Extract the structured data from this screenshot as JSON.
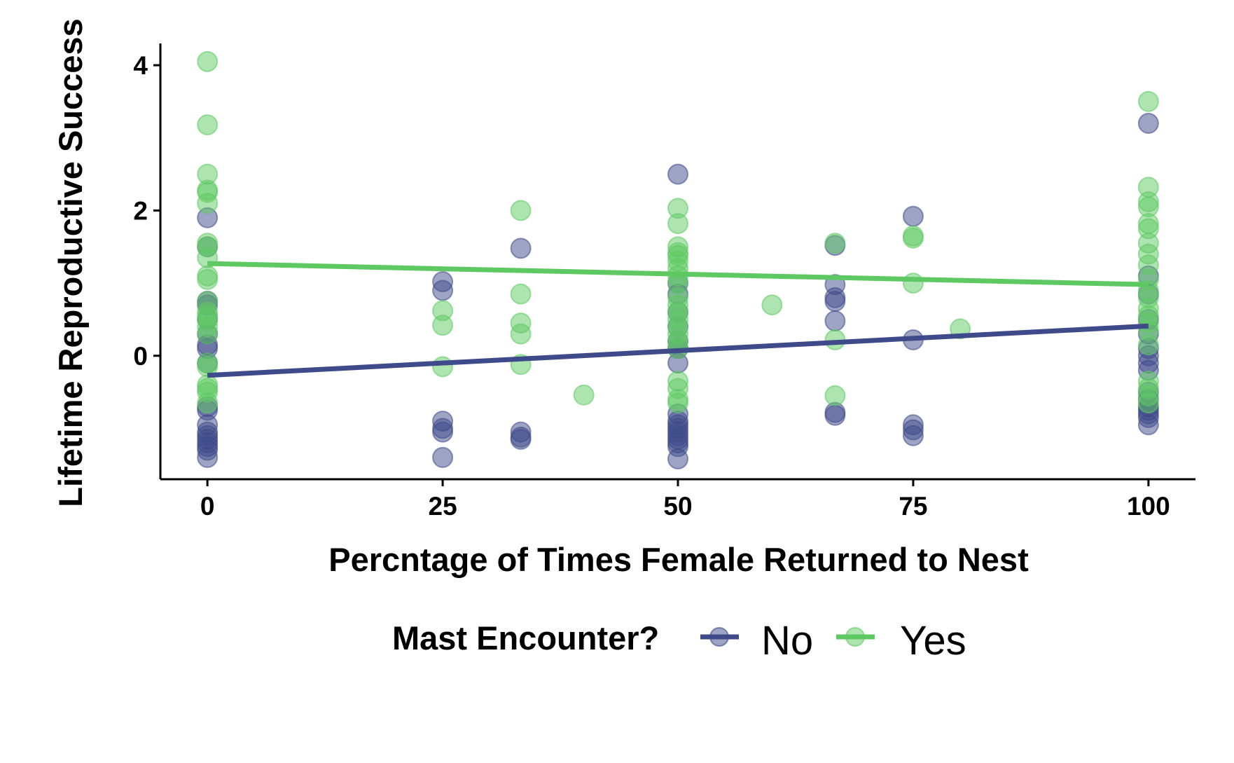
{
  "chart_data": {
    "type": "scatter",
    "title": "",
    "xlabel": "Percntage of Times Female Returned to Nest",
    "ylabel": "Lifetime Reproductive Success",
    "xlim": [
      -5,
      105
    ],
    "ylim": [
      -1.7,
      4.3
    ],
    "x_ticks": [
      0,
      25,
      50,
      75,
      100
    ],
    "y_ticks": [
      0,
      2,
      4
    ],
    "grid": false,
    "legend": {
      "title": "Mast Encounter?",
      "placement": "bottom",
      "entries": [
        "No",
        "Yes"
      ]
    },
    "series": [
      {
        "name": "No",
        "color": "#3e4a89",
        "points": [
          [
            0,
            1.9
          ],
          [
            0,
            1.5
          ],
          [
            0,
            0.75
          ],
          [
            0,
            0.7
          ],
          [
            0,
            0.5
          ],
          [
            0,
            0.3
          ],
          [
            0,
            0.15
          ],
          [
            0,
            0.1
          ],
          [
            0,
            -0.1
          ],
          [
            0,
            -0.7
          ],
          [
            0,
            -0.75
          ],
          [
            0,
            -0.95
          ],
          [
            0,
            -1.05
          ],
          [
            0,
            -1.1
          ],
          [
            0,
            -1.15
          ],
          [
            0,
            -1.2
          ],
          [
            0,
            -1.25
          ],
          [
            0,
            -1.3
          ],
          [
            0,
            -1.4
          ],
          [
            25,
            1.02
          ],
          [
            25,
            0.9
          ],
          [
            25,
            -0.9
          ],
          [
            25,
            -1.0
          ],
          [
            25,
            -1.05
          ],
          [
            25,
            -1.4
          ],
          [
            33.3,
            1.48
          ],
          [
            33.3,
            -1.05
          ],
          [
            33.3,
            -1.12
          ],
          [
            33.3,
            -1.15
          ],
          [
            50,
            2.5
          ],
          [
            50,
            1.0
          ],
          [
            50,
            0.85
          ],
          [
            50,
            0.6
          ],
          [
            50,
            0.4
          ],
          [
            50,
            0.2
          ],
          [
            50,
            0.1
          ],
          [
            50,
            -0.1
          ],
          [
            50,
            -0.8
          ],
          [
            50,
            -0.9
          ],
          [
            50,
            -0.95
          ],
          [
            50,
            -1.0
          ],
          [
            50,
            -1.05
          ],
          [
            50,
            -1.1
          ],
          [
            50,
            -1.15
          ],
          [
            50,
            -1.2
          ],
          [
            50,
            -1.25
          ],
          [
            50,
            -1.42
          ],
          [
            66.7,
            1.52
          ],
          [
            66.7,
            0.98
          ],
          [
            66.7,
            0.8
          ],
          [
            66.7,
            0.75
          ],
          [
            66.7,
            0.48
          ],
          [
            66.7,
            -0.78
          ],
          [
            66.7,
            -0.82
          ],
          [
            75,
            1.92
          ],
          [
            75,
            0.22
          ],
          [
            75,
            -0.95
          ],
          [
            75,
            -1.02
          ],
          [
            75,
            -1.1
          ],
          [
            100,
            3.2
          ],
          [
            100,
            1.1
          ],
          [
            100,
            0.85
          ],
          [
            100,
            0.5
          ],
          [
            100,
            0.3
          ],
          [
            100,
            0.1
          ],
          [
            100,
            0.0
          ],
          [
            100,
            -0.1
          ],
          [
            100,
            -0.2
          ],
          [
            100,
            -0.5
          ],
          [
            100,
            -0.6
          ],
          [
            100,
            -0.7
          ],
          [
            100,
            -0.75
          ],
          [
            100,
            -0.8
          ],
          [
            100,
            -0.85
          ],
          [
            100,
            -0.95
          ]
        ],
        "trend": {
          "x": [
            0,
            100
          ],
          "y": [
            -0.27,
            0.41
          ]
        }
      },
      {
        "name": "Yes",
        "color": "#5ec962",
        "points": [
          [
            0,
            4.05
          ],
          [
            0,
            3.18
          ],
          [
            0,
            2.5
          ],
          [
            0,
            2.28
          ],
          [
            0,
            2.25
          ],
          [
            0,
            2.1
          ],
          [
            0,
            1.55
          ],
          [
            0,
            1.5
          ],
          [
            0,
            1.35
          ],
          [
            0,
            1.1
          ],
          [
            0,
            1.05
          ],
          [
            0,
            0.75
          ],
          [
            0,
            0.6
          ],
          [
            0,
            0.55
          ],
          [
            0,
            0.5
          ],
          [
            0,
            0.4
          ],
          [
            0,
            0.3
          ],
          [
            0,
            -0.1
          ],
          [
            0,
            -0.15
          ],
          [
            0,
            -0.4
          ],
          [
            0,
            -0.45
          ],
          [
            0,
            -0.5
          ],
          [
            0,
            -0.65
          ],
          [
            25,
            0.62
          ],
          [
            25,
            0.42
          ],
          [
            25,
            -0.15
          ],
          [
            33.3,
            2.0
          ],
          [
            33.3,
            0.85
          ],
          [
            33.3,
            0.45
          ],
          [
            33.3,
            0.3
          ],
          [
            33.3,
            -0.12
          ],
          [
            40,
            -0.54
          ],
          [
            50,
            2.03
          ],
          [
            50,
            1.82
          ],
          [
            50,
            1.5
          ],
          [
            50,
            1.42
          ],
          [
            50,
            1.38
          ],
          [
            50,
            1.3
          ],
          [
            50,
            1.2
          ],
          [
            50,
            1.1
          ],
          [
            50,
            1.0
          ],
          [
            50,
            0.8
          ],
          [
            50,
            0.7
          ],
          [
            50,
            0.6
          ],
          [
            50,
            0.5
          ],
          [
            50,
            0.4
          ],
          [
            50,
            0.3
          ],
          [
            50,
            0.2
          ],
          [
            50,
            0.1
          ],
          [
            50,
            -0.35
          ],
          [
            50,
            -0.45
          ],
          [
            50,
            -0.6
          ],
          [
            50,
            -0.65
          ],
          [
            60,
            0.7
          ],
          [
            66.7,
            1.55
          ],
          [
            66.7,
            0.22
          ],
          [
            66.7,
            -0.55
          ],
          [
            75,
            1.65
          ],
          [
            75,
            1.62
          ],
          [
            75,
            1.0
          ],
          [
            80,
            0.37
          ],
          [
            100,
            3.5
          ],
          [
            100,
            2.32
          ],
          [
            100,
            2.12
          ],
          [
            100,
            2.05
          ],
          [
            100,
            1.82
          ],
          [
            100,
            1.75
          ],
          [
            100,
            1.55
          ],
          [
            100,
            1.4
          ],
          [
            100,
            1.25
          ],
          [
            100,
            1.05
          ],
          [
            100,
            0.9
          ],
          [
            100,
            0.8
          ],
          [
            100,
            0.65
          ],
          [
            100,
            0.55
          ],
          [
            100,
            0.45
          ],
          [
            100,
            0.35
          ],
          [
            100,
            0.15
          ],
          [
            100,
            -0.35
          ],
          [
            100,
            -0.45
          ],
          [
            100,
            -0.55
          ],
          [
            100,
            -0.65
          ]
        ],
        "trend": {
          "x": [
            0,
            100
          ],
          "y": [
            1.27,
            0.98
          ]
        }
      }
    ]
  }
}
